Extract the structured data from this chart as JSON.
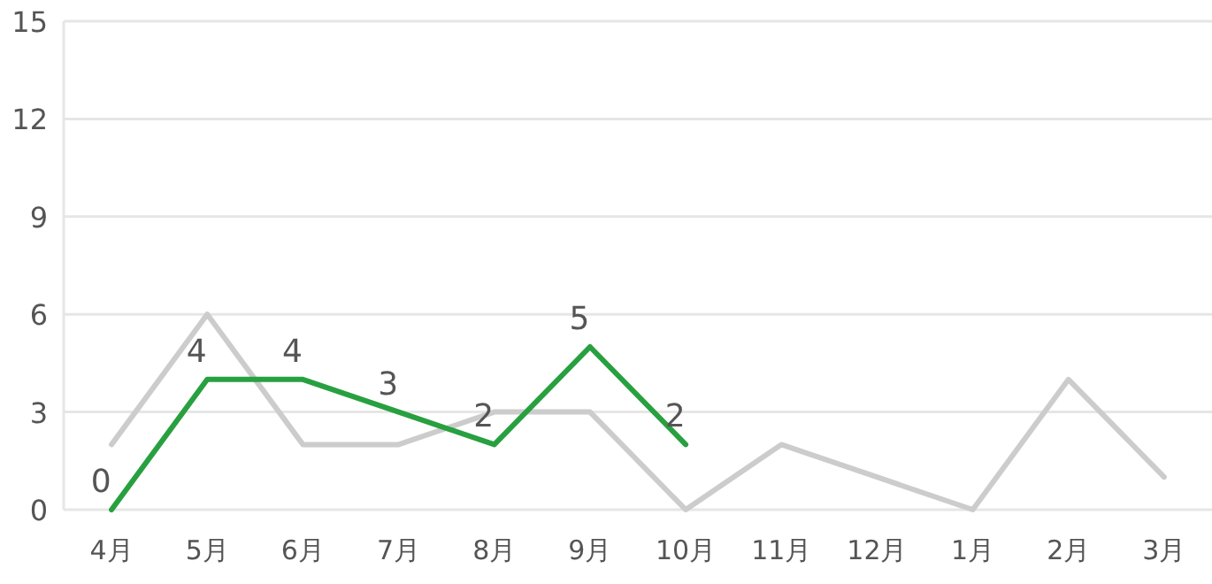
{
  "chart_data": {
    "type": "line",
    "categories": [
      "4月",
      "5月",
      "6月",
      "7月",
      "8月",
      "9月",
      "10月",
      "11月",
      "12月",
      "1月",
      "2月",
      "3月"
    ],
    "series": [
      {
        "color": "#cccccc",
        "values": [
          2,
          6,
          2,
          2,
          3,
          3,
          0,
          2,
          1,
          0,
          4,
          1
        ]
      },
      {
        "color": "#28a040",
        "values": [
          0,
          4,
          4,
          3,
          2,
          5,
          2,
          null,
          null,
          null,
          null,
          null
        ],
        "value_labels": [
          "0",
          "4",
          "4",
          "3",
          "2",
          "5",
          "2",
          null,
          null,
          null,
          null,
          null
        ]
      }
    ],
    "ylim": [
      0,
      15
    ],
    "yticks": [
      0,
      3,
      6,
      9,
      12,
      15
    ],
    "grid": "y",
    "marker": "none",
    "line_style": "solid"
  }
}
